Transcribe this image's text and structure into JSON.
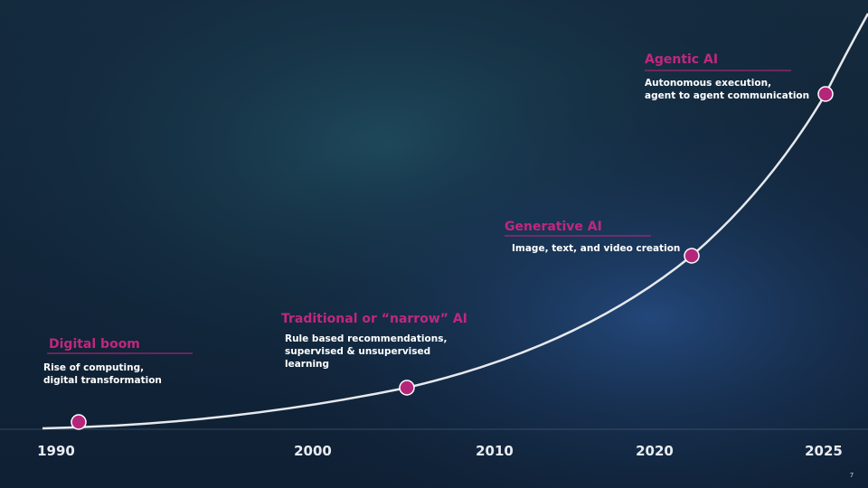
{
  "timeline": {
    "years": [
      "1990",
      "2000",
      "2010",
      "2020",
      "2025"
    ],
    "milestones": [
      {
        "title": "Digital boom",
        "description": [
          "Rise of computing,",
          "digital transformation"
        ]
      },
      {
        "title": "Traditional or “narrow” AI",
        "description": [
          "Rule based recommendations,",
          "supervised & unsupervised",
          "learning"
        ]
      },
      {
        "title": "Generative AI",
        "description": [
          "Image, text, and video creation"
        ]
      },
      {
        "title": "Agentic AI",
        "description": [
          "Autonomous execution,",
          "agent to agent communication"
        ]
      }
    ]
  },
  "page_number": "7"
}
